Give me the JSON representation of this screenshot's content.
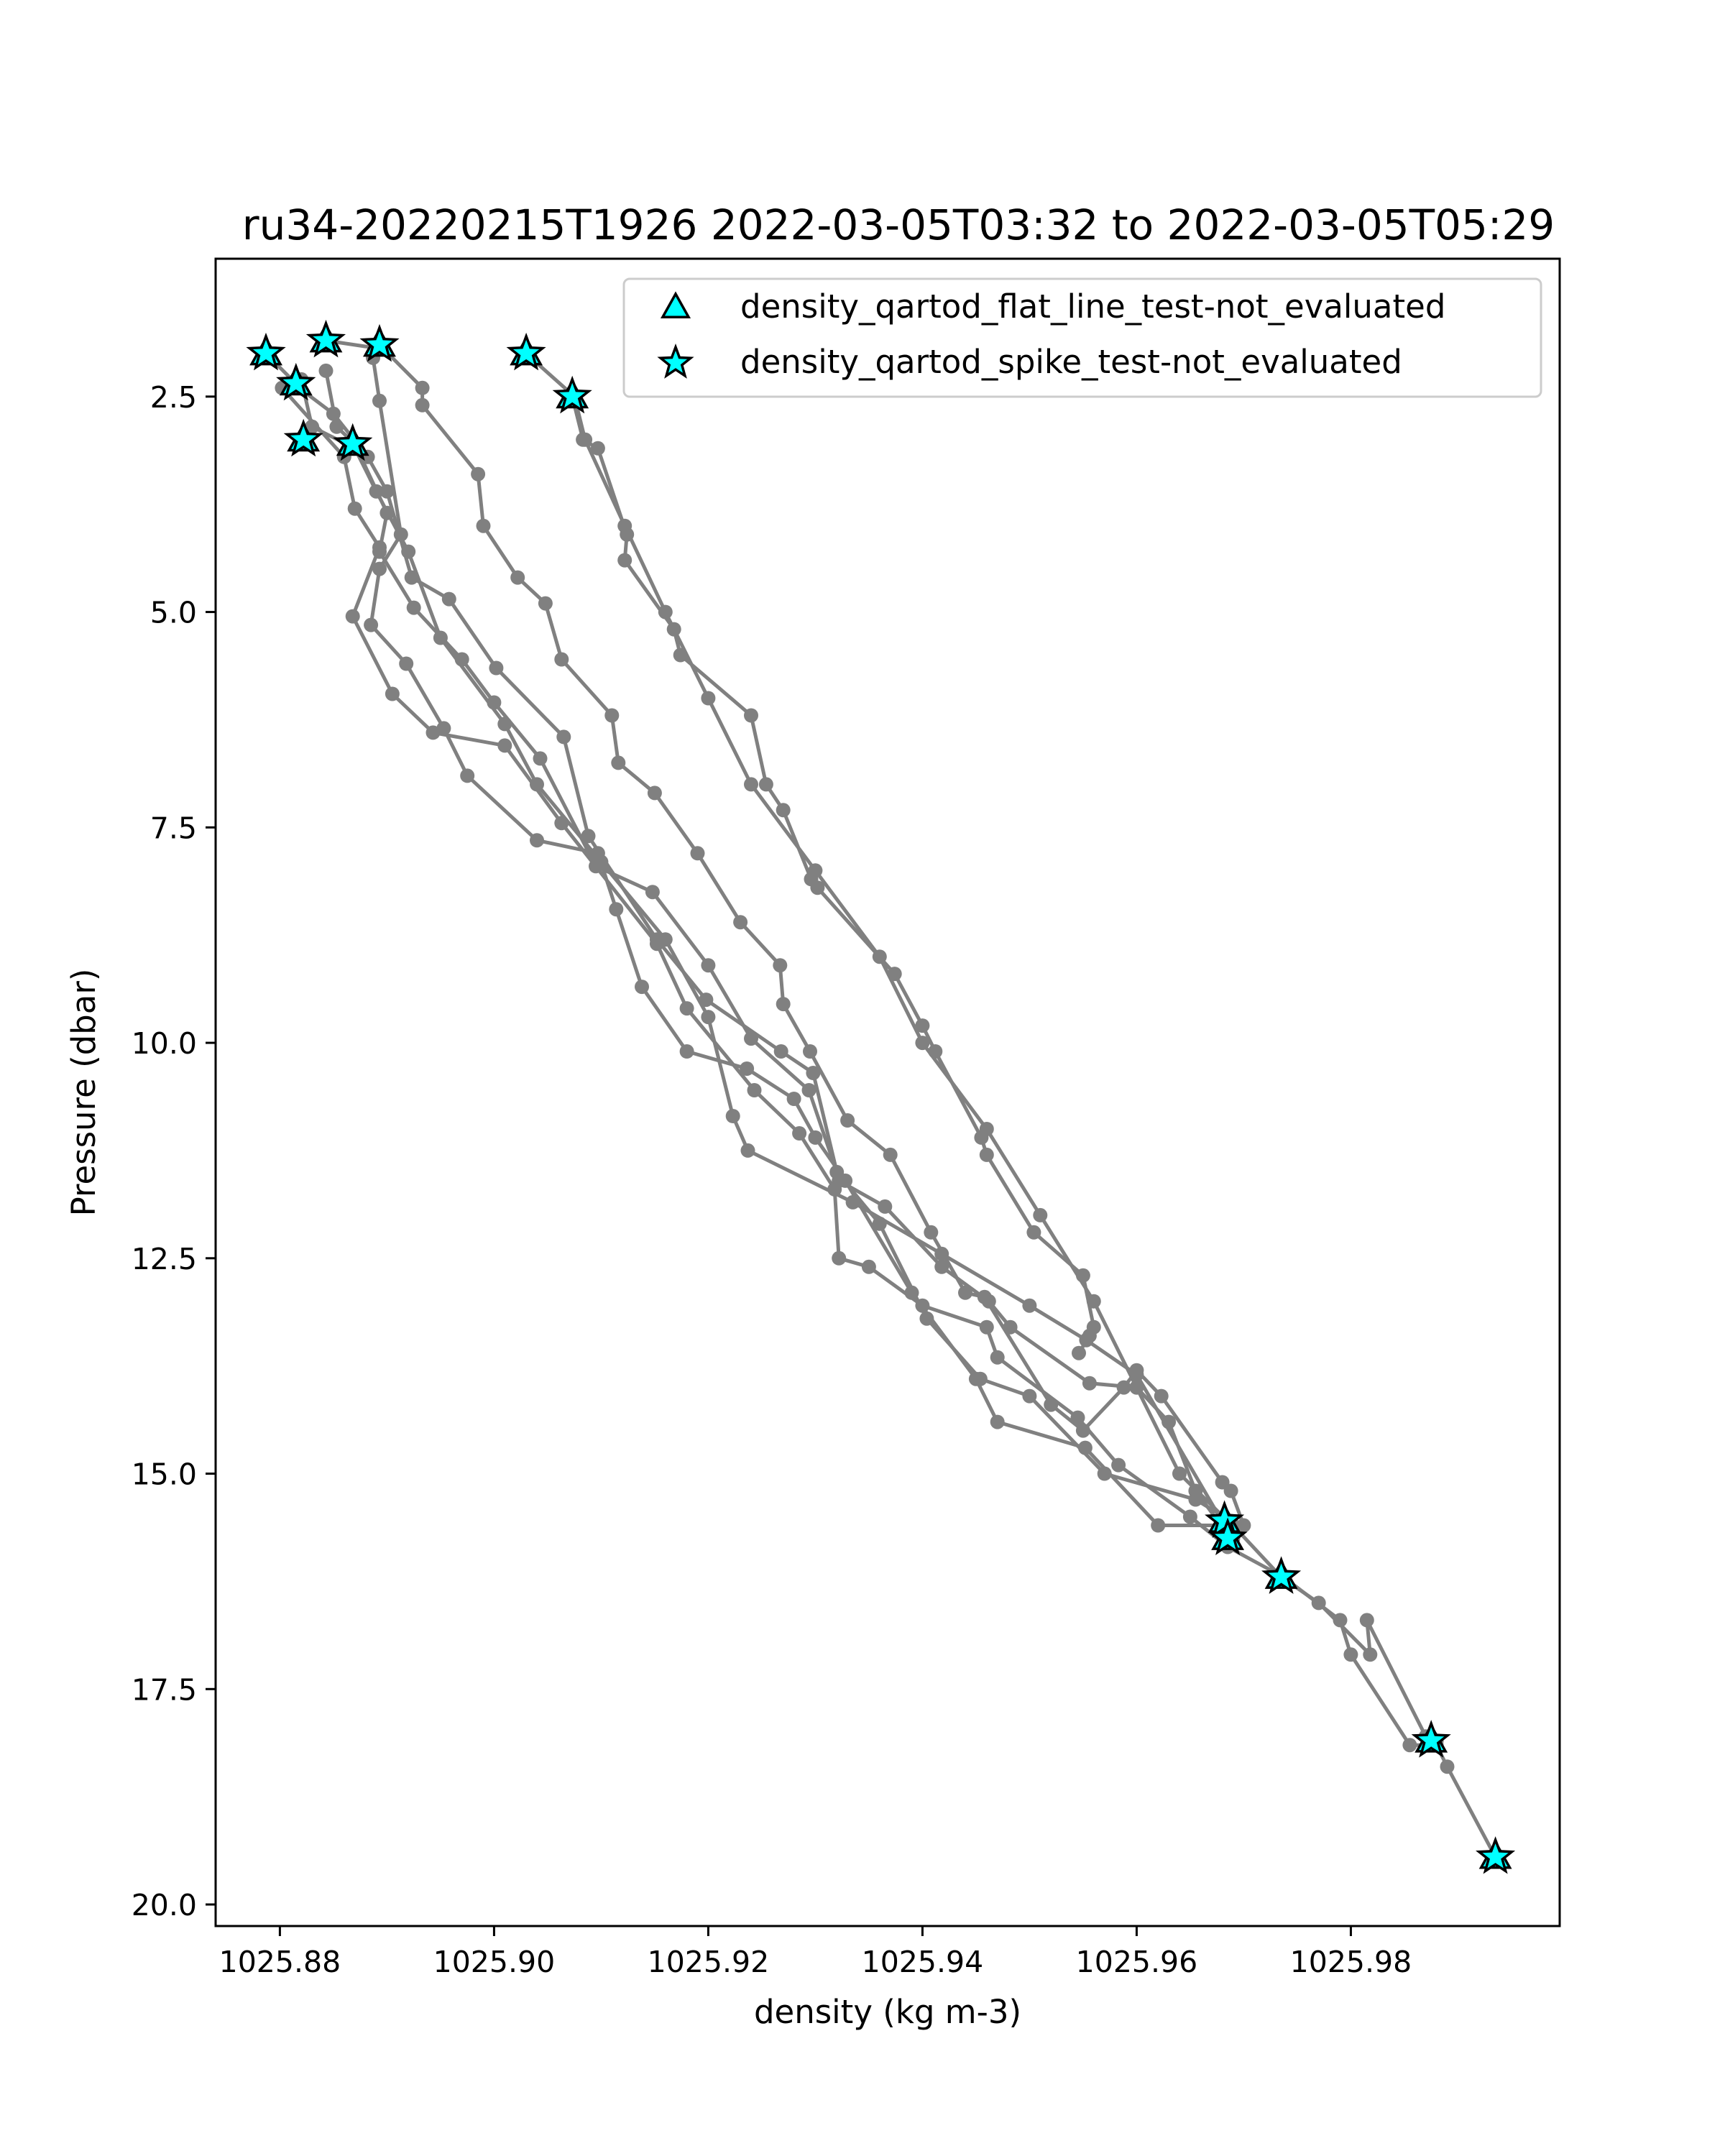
{
  "chart_data": {
    "type": "scatter",
    "title": "ru34-20220215T1926 2022-03-05T03:32 to 2022-03-05T05:29",
    "xlabel": "density (kg m-3)",
    "ylabel": "Pressure (dbar)",
    "xlim": [
      1025.874,
      1025.9995
    ],
    "ylim": [
      20.25,
      0.9
    ],
    "y_inverted": true,
    "grid": false,
    "legend_position": "top-right",
    "xticks": [
      1025.88,
      1025.9,
      1025.92,
      1025.94,
      1025.96,
      1025.98
    ],
    "xtick_labels": [
      "1025.88",
      "1025.90",
      "1025.92",
      "1025.94",
      "1025.96",
      "1025.98"
    ],
    "yticks": [
      2.5,
      5.0,
      7.5,
      10.0,
      12.5,
      15.0,
      17.5,
      20.0
    ],
    "ytick_labels": [
      "2.5",
      "5.0",
      "7.5",
      "10.0",
      "12.5",
      "15.0",
      "17.5",
      "20.0"
    ],
    "colors": {
      "profile_line": "#808080",
      "marker_fill": "#00ffff",
      "marker_edge": "#000000"
    },
    "profiles": [
      [
        [
          1025.9073,
          2.5
        ],
        [
          1025.9083,
          3.0
        ],
        [
          1025.9097,
          3.1
        ],
        [
          1025.9124,
          4.1
        ],
        [
          1025.9122,
          4.4
        ],
        [
          1025.9168,
          5.2
        ],
        [
          1025.9174,
          5.5
        ],
        [
          1025.924,
          6.2
        ],
        [
          1025.9254,
          7.0
        ],
        [
          1025.927,
          7.3
        ],
        [
          1025.9296,
          8.1
        ],
        [
          1025.9302,
          8.2
        ],
        [
          1025.9374,
          9.2
        ],
        [
          1025.94,
          9.8
        ],
        [
          1025.9412,
          10.1
        ],
        [
          1025.9455,
          11.1
        ],
        [
          1025.946,
          11.3
        ],
        [
          1025.9504,
          12.2
        ],
        [
          1025.955,
          12.7
        ],
        [
          1025.956,
          13.3
        ],
        [
          1025.9556,
          13.4
        ],
        [
          1025.9546,
          13.6
        ]
      ],
      [
        [
          1025.903,
          2.0
        ],
        [
          1025.9075,
          2.5
        ],
        [
          1025.9085,
          3.0
        ],
        [
          1025.9122,
          4.0
        ],
        [
          1025.916,
          5.0
        ],
        [
          1025.92,
          6.0
        ],
        [
          1025.924,
          7.0
        ],
        [
          1025.93,
          8.0
        ],
        [
          1025.936,
          9.0
        ],
        [
          1025.94,
          10.0
        ],
        [
          1025.946,
          11.0
        ],
        [
          1025.951,
          12.0
        ],
        [
          1025.956,
          13.0
        ],
        [
          1025.96,
          14.0
        ],
        [
          1025.964,
          15.0
        ],
        [
          1025.9685,
          15.55
        ]
      ],
      [
        [
          1025.8893,
          1.9
        ],
        [
          1025.8933,
          2.4
        ],
        [
          1025.8933,
          2.6
        ],
        [
          1025.8985,
          3.4
        ],
        [
          1025.899,
          4.0
        ],
        [
          1025.9022,
          4.6
        ],
        [
          1025.9048,
          4.9
        ],
        [
          1025.9063,
          5.55
        ],
        [
          1025.911,
          6.2
        ],
        [
          1025.9116,
          6.75
        ],
        [
          1025.915,
          7.1
        ],
        [
          1025.919,
          7.8
        ],
        [
          1025.923,
          8.6
        ],
        [
          1025.9267,
          9.1
        ],
        [
          1025.927,
          9.55
        ],
        [
          1025.9295,
          10.1
        ],
        [
          1025.933,
          10.9
        ],
        [
          1025.937,
          11.3
        ],
        [
          1025.9408,
          12.2
        ],
        [
          1025.944,
          12.9
        ],
        [
          1025.9458,
          12.95
        ],
        [
          1025.952,
          14.2
        ],
        [
          1025.955,
          14.5
        ],
        [
          1025.9588,
          14.0
        ],
        [
          1025.96,
          13.8
        ],
        [
          1025.9623,
          14.1
        ],
        [
          1025.968,
          15.1
        ],
        [
          1025.9688,
          15.2
        ],
        [
          1025.97,
          15.6
        ],
        [
          1025.969,
          15.75
        ]
      ],
      [
        [
          1025.8843,
          1.85
        ],
        [
          1025.8897,
          1.95
        ],
        [
          1025.8887,
          2.05
        ],
        [
          1025.8893,
          2.55
        ],
        [
          1025.8913,
          4.1
        ],
        [
          1025.8893,
          4.5
        ],
        [
          1025.8885,
          5.15
        ],
        [
          1025.8918,
          5.6
        ],
        [
          1025.8953,
          6.35
        ],
        [
          1025.8975,
          6.9
        ],
        [
          1025.904,
          7.65
        ],
        [
          1025.9097,
          7.8
        ],
        [
          1025.9114,
          8.45
        ],
        [
          1025.9138,
          9.35
        ],
        [
          1025.918,
          10.1
        ],
        [
          1025.9236,
          10.3
        ],
        [
          1025.928,
          10.65
        ],
        [
          1025.93,
          11.1
        ],
        [
          1025.9328,
          11.6
        ],
        [
          1025.939,
          12.9
        ],
        [
          1025.945,
          13.9
        ],
        [
          1025.947,
          14.4
        ],
        [
          1025.9552,
          14.7
        ],
        [
          1025.962,
          15.6
        ],
        [
          1025.969,
          15.6
        ],
        [
          1025.9735,
          16.2
        ],
        [
          1025.977,
          16.5
        ],
        [
          1025.9818,
          17.1
        ],
        [
          1025.9815,
          16.7
        ],
        [
          1025.987,
          18.05
        ],
        [
          1025.988,
          18.1
        ]
      ],
      [
        [
          1025.8802,
          2.4
        ],
        [
          1025.886,
          3.2
        ],
        [
          1025.887,
          3.8
        ],
        [
          1025.8893,
          4.25
        ],
        [
          1025.8868,
          5.05
        ],
        [
          1025.8905,
          5.95
        ],
        [
          1025.8943,
          6.4
        ],
        [
          1025.901,
          6.55
        ],
        [
          1025.9063,
          7.45
        ],
        [
          1025.9152,
          8.85
        ],
        [
          1025.918,
          9.6
        ],
        [
          1025.9243,
          10.55
        ],
        [
          1025.9285,
          11.05
        ],
        [
          1025.9318,
          11.7
        ],
        [
          1025.9322,
          12.5
        ],
        [
          1025.935,
          12.6
        ],
        [
          1025.94,
          13.05
        ],
        [
          1025.946,
          13.3
        ],
        [
          1025.947,
          13.65
        ],
        [
          1025.9545,
          14.35
        ],
        [
          1025.9583,
          14.9
        ],
        [
          1025.965,
          15.5
        ],
        [
          1025.9685,
          15.85
        ],
        [
          1025.9737,
          16.2
        ],
        [
          1025.979,
          16.7
        ],
        [
          1025.98,
          17.1
        ],
        [
          1025.9855,
          18.15
        ],
        [
          1025.988,
          18.15
        ],
        [
          1025.989,
          18.4
        ],
        [
          1025.9935,
          19.45
        ]
      ],
      [
        [
          1025.8787,
          2.0
        ],
        [
          1025.8815,
          2.35
        ],
        [
          1025.8818,
          2.4
        ],
        [
          1025.885,
          2.7
        ],
        [
          1025.8882,
          3.2
        ],
        [
          1025.89,
          3.6
        ],
        [
          1025.8923,
          4.6
        ],
        [
          1025.8958,
          4.85
        ],
        [
          1025.9002,
          5.65
        ],
        [
          1025.9065,
          6.45
        ],
        [
          1025.9088,
          7.6
        ],
        [
          1025.9152,
          8.8
        ],
        [
          1025.9198,
          9.5
        ],
        [
          1025.9268,
          10.1
        ],
        [
          1025.9298,
          10.35
        ],
        [
          1025.9322,
          11.6
        ],
        [
          1025.9365,
          11.9
        ],
        [
          1025.9418,
          12.6
        ],
        [
          1025.9462,
          13.0
        ],
        [
          1025.9482,
          13.3
        ],
        [
          1025.9556,
          13.95
        ],
        [
          1025.96,
          14.0
        ],
        [
          1025.963,
          14.4
        ],
        [
          1025.9655,
          15.2
        ],
        [
          1025.9685,
          15.7
        ],
        [
          1025.968,
          15.65
        ]
      ],
      [
        [
          1025.8843,
          2.2
        ],
        [
          1025.8853,
          2.85
        ],
        [
          1025.887,
          3.05
        ],
        [
          1025.89,
          3.85
        ],
        [
          1025.8893,
          4.3
        ],
        [
          1025.8925,
          4.95
        ],
        [
          1025.897,
          5.55
        ],
        [
          1025.9,
          6.05
        ],
        [
          1025.9043,
          6.7
        ],
        [
          1025.9095,
          7.95
        ],
        [
          1025.9148,
          8.25
        ],
        [
          1025.92,
          9.1
        ],
        [
          1025.924,
          9.95
        ],
        [
          1025.9294,
          10.55
        ],
        [
          1025.932,
          11.5
        ],
        [
          1025.936,
          12.1
        ],
        [
          1025.9404,
          13.2
        ],
        [
          1025.9454,
          13.9
        ],
        [
          1025.95,
          14.1
        ],
        [
          1025.957,
          15.0
        ],
        [
          1025.9655,
          15.3
        ],
        [
          1025.9688,
          15.55
        ]
      ],
      [
        [
          1025.882,
          2.3
        ],
        [
          1025.883,
          2.85
        ],
        [
          1025.887,
          3.1
        ],
        [
          1025.889,
          3.6
        ],
        [
          1025.892,
          4.3
        ],
        [
          1025.895,
          5.3
        ],
        [
          1025.901,
          6.3
        ],
        [
          1025.904,
          7.0
        ],
        [
          1025.91,
          7.9
        ],
        [
          1025.916,
          8.8
        ],
        [
          1025.92,
          9.7
        ],
        [
          1025.9223,
          10.85
        ],
        [
          1025.9237,
          11.25
        ],
        [
          1025.9335,
          11.85
        ],
        [
          1025.9418,
          12.45
        ],
        [
          1025.95,
          13.05
        ],
        [
          1025.9553,
          13.45
        ],
        [
          1025.96,
          13.85
        ],
        [
          1025.9682,
          15.6
        ]
      ]
    ],
    "series": [
      {
        "name": "density_qartod_flat_line_test-not_evaluated",
        "marker": "triangle",
        "points": [
          [
            1025.8787,
            2.0
          ],
          [
            1025.8843,
            1.85
          ],
          [
            1025.8893,
            1.9
          ],
          [
            1025.903,
            2.0
          ],
          [
            1025.9073,
            2.5
          ],
          [
            1025.8815,
            2.35
          ],
          [
            1025.8822,
            3.0
          ],
          [
            1025.8868,
            3.05
          ],
          [
            1025.9682,
            15.55
          ],
          [
            1025.9685,
            15.75
          ],
          [
            1025.9735,
            16.2
          ],
          [
            1025.9875,
            18.1
          ],
          [
            1025.9935,
            19.45
          ]
        ]
      },
      {
        "name": "density_qartod_spike_test-not_evaluated",
        "marker": "star",
        "points": [
          [
            1025.8787,
            2.0
          ],
          [
            1025.8843,
            1.85
          ],
          [
            1025.8893,
            1.9
          ],
          [
            1025.903,
            2.0
          ],
          [
            1025.9073,
            2.5
          ],
          [
            1025.8815,
            2.35
          ],
          [
            1025.8822,
            3.0
          ],
          [
            1025.8868,
            3.05
          ],
          [
            1025.9682,
            15.55
          ],
          [
            1025.9685,
            15.75
          ],
          [
            1025.9735,
            16.2
          ],
          [
            1025.9875,
            18.1
          ],
          [
            1025.9935,
            19.45
          ]
        ]
      }
    ]
  }
}
